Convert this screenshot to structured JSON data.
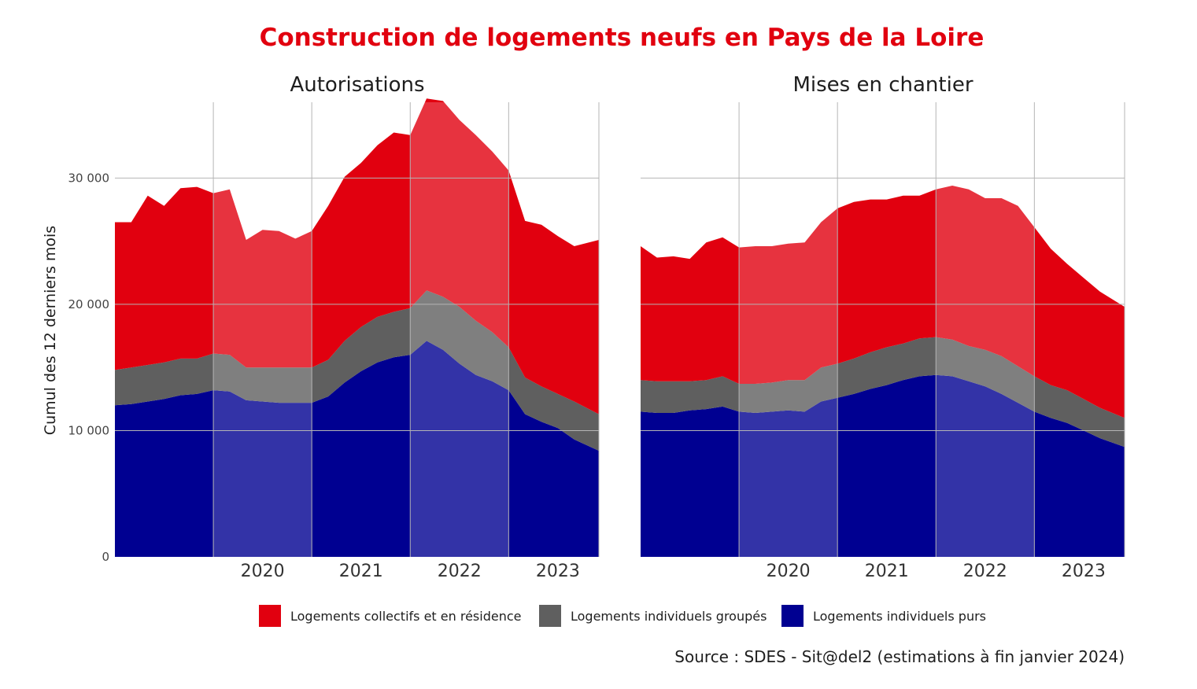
{
  "title": "Construction de logements neufs en Pays de la Loire",
  "ylabel": "Cumul des 12 derniers mois",
  "source": "Source : SDES - Sit@del2 (estimations à fin janvier 2024)",
  "colors": {
    "collectifs": "#e1000f",
    "groupes": "#5f5f5f",
    "purs": "#000091",
    "title": "#e1000f"
  },
  "legend": [
    {
      "label": "Logements collectifs et en résidence",
      "color": "#e1000f"
    },
    {
      "label": "Logements individuels groupés",
      "color": "#5f5f5f"
    },
    {
      "label": "Logements individuels purs",
      "color": "#000091"
    }
  ],
  "chart_data": [
    {
      "type": "area",
      "stacked": true,
      "title": "Autorisations",
      "xlabel": "",
      "ylabel": "Cumul des 12 derniers mois",
      "ylim": [
        0,
        36000
      ],
      "yticks": [
        0,
        10000,
        20000,
        30000
      ],
      "ytick_labels": [
        "0",
        "10 000",
        "20 000",
        "30 000"
      ],
      "xlim": [
        "2019-01",
        "2023-12"
      ],
      "xticks": [
        "2020",
        "2021",
        "2022",
        "2023"
      ],
      "xaxis": "monthly",
      "shaded_years": [
        "2020",
        "2022"
      ],
      "grid": true,
      "legend_position": "bottom",
      "dates": [
        "2019-01",
        "2019-03",
        "2019-05",
        "2019-07",
        "2019-09",
        "2019-11",
        "2020-01",
        "2020-03",
        "2020-05",
        "2020-07",
        "2020-09",
        "2020-11",
        "2021-01",
        "2021-03",
        "2021-05",
        "2021-07",
        "2021-09",
        "2021-11",
        "2022-01",
        "2022-03",
        "2022-05",
        "2022-07",
        "2022-09",
        "2022-11",
        "2023-01",
        "2023-03",
        "2023-05",
        "2023-07",
        "2023-09",
        "2023-12"
      ],
      "series": [
        {
          "name": "Logements individuels purs",
          "values": [
            12000,
            12100,
            12300,
            12500,
            12800,
            12900,
            13200,
            13100,
            12400,
            12300,
            12200,
            12200,
            12200,
            12700,
            13800,
            14700,
            15400,
            15800,
            16000,
            17100,
            16400,
            15300,
            14400,
            13900,
            13200,
            11300,
            10700,
            10200,
            9300,
            8400
          ]
        },
        {
          "name": "Logements individuels groupés",
          "values": [
            2800,
            2900,
            2900,
            2900,
            2900,
            2800,
            2900,
            2900,
            2600,
            2700,
            2800,
            2800,
            2800,
            2900,
            3300,
            3500,
            3600,
            3600,
            3700,
            4000,
            4200,
            4500,
            4300,
            3900,
            3400,
            2900,
            2800,
            2700,
            3000,
            2900
          ]
        },
        {
          "name": "Logements collectifs et en résidence",
          "values": [
            11700,
            11500,
            13400,
            12400,
            13500,
            13600,
            12700,
            13100,
            10100,
            10900,
            10800,
            10200,
            10800,
            12200,
            13000,
            13000,
            13600,
            14200,
            13700,
            15200,
            15500,
            14800,
            14700,
            14300,
            14000,
            12400,
            12800,
            12500,
            12300,
            13800
          ]
        }
      ]
    },
    {
      "type": "area",
      "stacked": true,
      "title": "Mises en chantier",
      "xlabel": "",
      "ylabel": "",
      "ylim": [
        0,
        36000
      ],
      "yticks": [
        0,
        10000,
        20000,
        30000
      ],
      "xlim": [
        "2019-01",
        "2023-12"
      ],
      "xticks": [
        "2020",
        "2021",
        "2022",
        "2023"
      ],
      "xaxis": "monthly",
      "shaded_years": [
        "2020",
        "2022"
      ],
      "grid": true,
      "legend_position": "bottom",
      "dates": [
        "2019-01",
        "2019-03",
        "2019-05",
        "2019-07",
        "2019-09",
        "2019-11",
        "2020-01",
        "2020-03",
        "2020-05",
        "2020-07",
        "2020-09",
        "2020-11",
        "2021-01",
        "2021-03",
        "2021-05",
        "2021-07",
        "2021-09",
        "2021-11",
        "2022-01",
        "2022-03",
        "2022-05",
        "2022-07",
        "2022-09",
        "2022-11",
        "2023-01",
        "2023-03",
        "2023-05",
        "2023-07",
        "2023-09",
        "2023-12"
      ],
      "series": [
        {
          "name": "Logements individuels purs",
          "values": [
            11500,
            11400,
            11400,
            11600,
            11700,
            11900,
            11500,
            11400,
            11500,
            11600,
            11500,
            12300,
            12600,
            12900,
            13300,
            13600,
            14000,
            14300,
            14400,
            14300,
            13900,
            13500,
            12900,
            12200,
            11500,
            11000,
            10600,
            10000,
            9400,
            8700
          ]
        },
        {
          "name": "Logements individuels groupés",
          "values": [
            2500,
            2500,
            2500,
            2300,
            2300,
            2400,
            2200,
            2300,
            2300,
            2400,
            2500,
            2700,
            2700,
            2800,
            2900,
            3000,
            2900,
            3000,
            3000,
            2900,
            2800,
            2900,
            3000,
            2900,
            2800,
            2600,
            2600,
            2500,
            2400,
            2300
          ]
        },
        {
          "name": "Logements collectifs et en résidence",
          "values": [
            10600,
            9800,
            9900,
            9700,
            10900,
            11000,
            10800,
            10900,
            10800,
            10800,
            10900,
            11500,
            12300,
            12400,
            12100,
            11700,
            11700,
            11300,
            11700,
            12200,
            12400,
            12000,
            12500,
            12700,
            11800,
            10800,
            10000,
            9600,
            9200,
            8800
          ]
        }
      ]
    }
  ]
}
